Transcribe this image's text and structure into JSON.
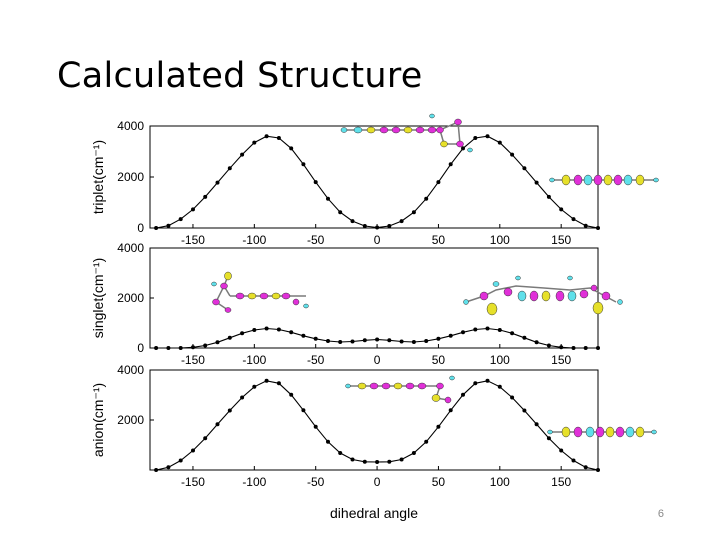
{
  "slide": {
    "title": "Calculated Structure",
    "page_number": "6"
  },
  "colors": {
    "line": "#000000",
    "sulfur": "#e6e02a",
    "carbon": "#e030d8",
    "hydrogen": "#5fe0ea",
    "bond": "#7a7a7a"
  },
  "chart_data": [
    {
      "type": "line",
      "ylabel": "triplet(cm⁻¹)",
      "xlabel": "",
      "xlim": [
        -185,
        180
      ],
      "ylim": [
        0,
        4000
      ],
      "yticks": [
        0,
        2000,
        4000
      ],
      "xticks": [
        -150,
        -100,
        -50,
        0,
        50,
        100,
        150
      ],
      "x": [
        -180,
        -170,
        -160,
        -150,
        -140,
        -130,
        -120,
        -110,
        -100,
        -90,
        -80,
        -70,
        -60,
        -50,
        -40,
        -30,
        -20,
        -10,
        0,
        10,
        20,
        30,
        40,
        50,
        60,
        70,
        80,
        90,
        100,
        110,
        120,
        130,
        140,
        150,
        160,
        170,
        180
      ],
      "y": [
        0,
        90,
        350,
        730,
        1220,
        1780,
        2340,
        2880,
        3350,
        3600,
        3530,
        3120,
        2500,
        1800,
        1150,
        620,
        270,
        80,
        20,
        80,
        270,
        620,
        1150,
        1800,
        2500,
        3120,
        3530,
        3600,
        3350,
        2880,
        2340,
        1780,
        1220,
        730,
        350,
        90,
        0
      ]
    },
    {
      "type": "line",
      "ylabel": "singlet(cm⁻¹)",
      "xlabel": "",
      "xlim": [
        -185,
        180
      ],
      "ylim": [
        0,
        4000
      ],
      "yticks": [
        0,
        2000,
        4000
      ],
      "xticks": [
        -150,
        -100,
        -50,
        0,
        50,
        100,
        150
      ],
      "x": [
        -180,
        -170,
        -160,
        -150,
        -140,
        -130,
        -120,
        -110,
        -100,
        -90,
        -80,
        -70,
        -60,
        -50,
        -40,
        -30,
        -20,
        -10,
        0,
        10,
        20,
        30,
        40,
        50,
        60,
        70,
        80,
        90,
        100,
        110,
        120,
        130,
        140,
        150,
        160,
        170,
        180
      ],
      "y": [
        0,
        0,
        0,
        30,
        100,
        230,
        410,
        590,
        720,
        780,
        740,
        630,
        490,
        370,
        280,
        240,
        260,
        310,
        340,
        310,
        260,
        240,
        280,
        370,
        490,
        630,
        740,
        780,
        720,
        590,
        410,
        230,
        100,
        30,
        0,
        0,
        0
      ]
    },
    {
      "type": "line",
      "ylabel": "anion(cm⁻¹)",
      "xlabel": "dihedral angle",
      "xlim": [
        -185,
        180
      ],
      "ylim": [
        0,
        4000
      ],
      "yticks": [
        2000,
        4000
      ],
      "xticks": [
        -150,
        -100,
        -50,
        0,
        50,
        100,
        150
      ],
      "x": [
        -180,
        -170,
        -160,
        -150,
        -140,
        -130,
        -120,
        -110,
        -100,
        -90,
        -80,
        -70,
        -60,
        -50,
        -40,
        -30,
        -20,
        -10,
        0,
        10,
        20,
        30,
        40,
        50,
        60,
        70,
        80,
        90,
        100,
        110,
        120,
        130,
        140,
        150,
        160,
        170,
        180
      ],
      "y": [
        0,
        110,
        380,
        780,
        1270,
        1830,
        2380,
        2900,
        3330,
        3570,
        3470,
        3010,
        2390,
        1730,
        1130,
        680,
        420,
        330,
        320,
        330,
        420,
        680,
        1130,
        1730,
        2390,
        3010,
        3470,
        3570,
        3330,
        2900,
        2380,
        1830,
        1270,
        780,
        380,
        110,
        0
      ]
    }
  ]
}
